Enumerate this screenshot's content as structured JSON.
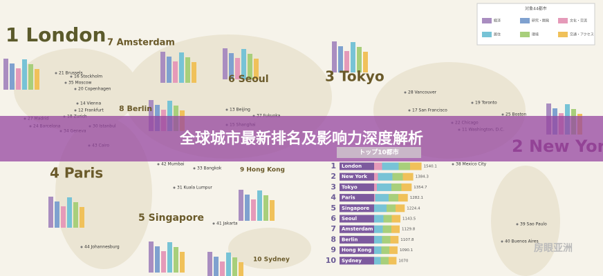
{
  "legend": {
    "title": "対象44都市",
    "items": [
      "経済",
      "研究・開発",
      "文化・交流",
      "居住",
      "環境",
      "交通・アクセス"
    ]
  },
  "banner": "全球城市最新排名及影响力深度解析",
  "cities": [
    "1 London",
    "7 Amsterdam",
    "6 Seoul",
    "3 Tokyo",
    "8 Berlin",
    "4 Paris",
    "5 Singapore",
    "9 Hong Kong",
    "10 Sydney",
    "2 New York"
  ],
  "map_labels": [
    "21 Brussels",
    "16 Stockholm",
    "35 Moscow",
    "20 Copenhagen",
    "14 Vienna",
    "12 Frankfurt",
    "18 Zurich",
    "27 Madrid",
    "24 Barcelona",
    "34 Geneva",
    "30 Istanbul",
    "43 Cairo",
    "42 Mumbai",
    "33 Bangkok",
    "31 Kuala Lumpur",
    "41 Jakarta",
    "44 Johannesburg",
    "13 Beijing",
    "37 Fukuoka",
    "15 Shanghai",
    "28 Vancouver",
    "17 San Francisco",
    "19 Toronto",
    "25 Boston",
    "22 Chicago",
    "11 Washington, D.C.",
    "38 Mexico City",
    "39 Sao Paulo",
    "40 Buenos Aires"
  ],
  "ranking": {
    "title": "トップ10都市",
    "rows": [
      {
        "rank": "1",
        "name": "London",
        "score": 1540.1
      },
      {
        "rank": "2",
        "name": "New York",
        "score": 1384.3
      },
      {
        "rank": "3",
        "name": "Tokyo",
        "score": 1354.7
      },
      {
        "rank": "4",
        "name": "Paris",
        "score": 1282.1
      },
      {
        "rank": "5",
        "name": "Singapore",
        "score": 1224.4
      },
      {
        "rank": "6",
        "name": "Seoul",
        "score": 1143.5
      },
      {
        "rank": "7",
        "name": "Amsterdam",
        "score": 1129.8
      },
      {
        "rank": "8",
        "name": "Berlin",
        "score": 1107.8
      },
      {
        "rank": "9",
        "name": "Hong Kong",
        "score": 1090.1
      },
      {
        "rank": "10",
        "name": "Sydney",
        "score": 1070.0
      }
    ]
  },
  "watermark": "房眼亚洲"
}
